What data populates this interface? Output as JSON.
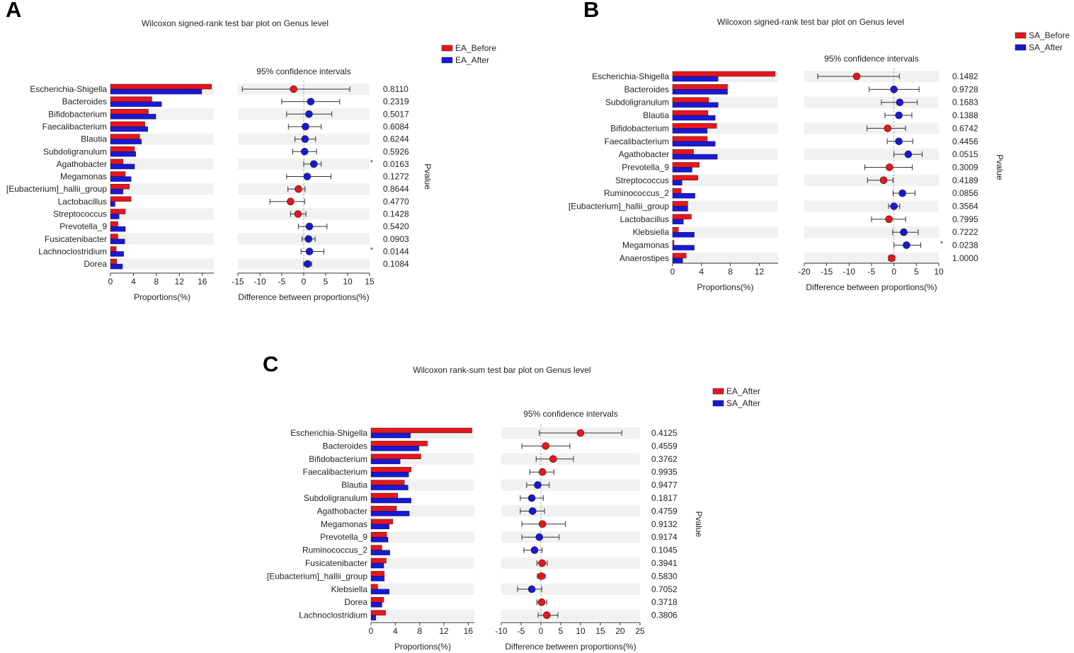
{
  "chart_data": [
    {
      "type": "bar",
      "panel": "A",
      "title": "Wilcoxon signed-rank test bar plot on Genus level",
      "legend": [
        "EA_Before",
        "EA_After"
      ],
      "colors": [
        "#e8151b",
        "#1818d6"
      ],
      "categories": [
        "Escherichia-Shigella",
        "Bacteroides",
        "Bifidobacterium",
        "Faecalibacterium",
        "Blautia",
        "Subdoligranulum",
        "Agathobacter",
        "Megamonas",
        "[Eubacterium]_hallii_group",
        "Lactobacillus",
        "Streptococcus",
        "Prevotella_9",
        "Fusicatenibacter",
        "Lachnoclostridium",
        "Dorea"
      ],
      "series": [
        {
          "name": "EA_Before",
          "values": [
            17.6,
            7.2,
            6.6,
            6.0,
            5.1,
            4.2,
            2.2,
            2.6,
            3.3,
            3.6,
            2.6,
            1.3,
            1.3,
            1.0,
            1.1
          ]
        },
        {
          "name": "EA_After",
          "values": [
            15.9,
            8.9,
            7.9,
            6.5,
            5.4,
            4.4,
            4.2,
            3.6,
            2.2,
            0.8,
            1.5,
            2.6,
            2.5,
            2.3,
            2.1
          ]
        }
      ],
      "bar_ticks": [
        0,
        4,
        8,
        12,
        16
      ],
      "bar_xlim": [
        0,
        18
      ],
      "bar_xlabel": "Proportions(%)",
      "ci_title": "95% confidence intervals",
      "ci_xlabel": "Difference between proportions(%)",
      "ci_ticks": [
        -15,
        -10,
        -5,
        0,
        5,
        10,
        15
      ],
      "ci_xlim": [
        -15,
        15
      ],
      "diff": [
        -2.3,
        1.6,
        1.2,
        0.4,
        0.3,
        0.2,
        2.3,
        0.8,
        -1.2,
        -3.0,
        -1.3,
        1.3,
        1.1,
        1.3,
        0.9
      ],
      "ci_low": [
        -14.0,
        -5.0,
        -3.9,
        -3.5,
        -2.0,
        -2.5,
        0.0,
        -3.9,
        -3.6,
        -7.7,
        -3.0,
        -1.2,
        -0.4,
        -0.6,
        0.0
      ],
      "ci_high": [
        10.5,
        8.2,
        6.4,
        4.0,
        2.7,
        2.9,
        4.0,
        6.2,
        0.3,
        0.2,
        0.5,
        5.3,
        2.6,
        4.6,
        1.8
      ],
      "pvalues": [
        "0.8110",
        "0.2319",
        "0.5017",
        "0.6084",
        "0.6244",
        "0.5926",
        "0.0163",
        "0.1272",
        "0.8644",
        "0.4770",
        "0.1428",
        "0.5420",
        "0.0903",
        "0.0144",
        "0.1084"
      ],
      "significant": [
        false,
        false,
        false,
        false,
        false,
        false,
        true,
        false,
        false,
        false,
        false,
        false,
        false,
        true,
        false
      ],
      "pvalue_label": "Pvalue"
    },
    {
      "type": "bar",
      "panel": "B",
      "title": "Wilcoxon signed-rank test bar plot on Genus level",
      "legend": [
        "SA_Before",
        "SA_After"
      ],
      "colors": [
        "#e8151b",
        "#1818d6"
      ],
      "categories": [
        "Escherichia-Shigella",
        "Bacteroides",
        "Subdoligranulum",
        "Blautia",
        "Bifidobacterium",
        "Faecalibacterium",
        "Agathobacter",
        "Prevotella_9",
        "Streptococcus",
        "Ruminococcus_2",
        "[Eubacterium]_hallii_group",
        "Lactobacillus",
        "Klebsiella",
        "Megamonas",
        "Anaerostipes"
      ],
      "series": [
        {
          "name": "SA_Before",
          "values": [
            14.2,
            7.6,
            5.0,
            4.9,
            6.1,
            4.8,
            2.9,
            3.7,
            3.5,
            1.2,
            2.1,
            2.6,
            0.8,
            0.2,
            1.9
          ]
        },
        {
          "name": "SA_After",
          "values": [
            6.3,
            7.6,
            6.3,
            5.9,
            4.8,
            5.9,
            6.2,
            2.7,
            1.3,
            3.1,
            2.1,
            1.5,
            3.0,
            3.0,
            1.4
          ]
        }
      ],
      "bar_ticks": [
        0,
        4,
        8,
        12
      ],
      "bar_xlim": [
        0,
        14.6
      ],
      "bar_xlabel": "Proportions(%)",
      "ci_title": "95% confidence intervals",
      "ci_xlabel": "Difference between proportions(%)",
      "ci_ticks": [
        -20,
        -15,
        -10,
        -5,
        0,
        5,
        10
      ],
      "ci_xlim": [
        -20,
        10
      ],
      "diff": [
        -8.3,
        0.0,
        1.3,
        1.1,
        -1.4,
        1.1,
        3.2,
        -1.0,
        -2.3,
        1.9,
        0.0,
        -1.1,
        2.2,
        2.8,
        -0.5
      ],
      "ci_low": [
        -17.0,
        -5.5,
        -2.8,
        -2.0,
        -6.0,
        -1.5,
        0.0,
        -6.5,
        -5.9,
        -0.2,
        -1.2,
        -5.0,
        -0.3,
        0.0,
        -1.2
      ],
      "ci_high": [
        1.2,
        5.6,
        5.2,
        4.0,
        2.6,
        4.2,
        6.3,
        4.1,
        -0.2,
        4.7,
        1.3,
        2.6,
        5.4,
        6.0,
        0.2
      ],
      "pvalues": [
        "0.1482",
        "0.9728",
        "0.1683",
        "0.1388",
        "0.6742",
        "0.4456",
        "0.0515",
        "0.3009",
        "0.4189",
        "0.0856",
        "0.3564",
        "0.7995",
        "0.7222",
        "0.0238",
        "1.0000"
      ],
      "significant": [
        false,
        false,
        false,
        false,
        false,
        false,
        false,
        false,
        false,
        false,
        false,
        false,
        false,
        true,
        false
      ],
      "pvalue_label": "Pvalue"
    },
    {
      "type": "bar",
      "panel": "C",
      "title": "Wilcoxon rank-sum test bar plot on Genus level",
      "legend": [
        "EA_After",
        "SA_After"
      ],
      "colors": [
        "#e8151b",
        "#1818d6"
      ],
      "categories": [
        "Escherichia-Shigella",
        "Bacteroides",
        "Bifidobacterium",
        "Faecalibacterium",
        "Blautia",
        "Subdoligranulum",
        "Agathobacter",
        "Megamonas",
        "Prevotella_9",
        "Ruminococcus_2",
        "Fusicatenibacter",
        "[Eubacterium]_hallii_group",
        "Klebsiella",
        "Dorea",
        "Lachnoclostridium"
      ],
      "series": [
        {
          "name": "EA_After",
          "values": [
            16.6,
            9.3,
            8.2,
            6.6,
            5.5,
            4.4,
            4.2,
            3.6,
            2.6,
            1.8,
            2.5,
            2.2,
            1.1,
            2.1,
            2.4
          ]
        },
        {
          "name": "SA_After",
          "values": [
            6.5,
            7.9,
            4.8,
            6.2,
            6.1,
            6.6,
            6.3,
            3.0,
            2.8,
            3.1,
            2.1,
            2.2,
            3.0,
            1.8,
            0.8
          ]
        }
      ],
      "bar_ticks": [
        0,
        4,
        8,
        12,
        16
      ],
      "bar_xlim": [
        0,
        17
      ],
      "bar_xlabel": "Proportions(%)",
      "ci_title": "95% confidence intervals",
      "ci_xlabel": "Difference between proportions(%)",
      "ci_ticks": [
        -10,
        -5,
        0,
        5,
        10,
        15,
        20,
        25
      ],
      "ci_xlim": [
        -10,
        25
      ],
      "diff": [
        10.0,
        1.2,
        3.1,
        0.4,
        -0.8,
        -2.3,
        -2.1,
        0.4,
        -0.4,
        -1.6,
        0.3,
        0.1,
        -2.3,
        0.2,
        1.5
      ],
      "ci_low": [
        -0.4,
        -4.8,
        -1.2,
        -2.8,
        -3.6,
        -5.2,
        -5.2,
        -4.8,
        -4.8,
        -4.3,
        -1.0,
        -0.9,
        -5.9,
        -1.0,
        -0.7
      ],
      "ci_high": [
        20.4,
        7.3,
        8.2,
        3.3,
        2.1,
        0.6,
        0.9,
        6.2,
        4.6,
        0.3,
        1.6,
        1.1,
        0.2,
        1.5,
        4.3
      ],
      "pvalues": [
        "0.4125",
        "0.4559",
        "0.3762",
        "0.9935",
        "0.9477",
        "0.1817",
        "0.4759",
        "0.9132",
        "0.9174",
        "0.1045",
        "0.3941",
        "0.5830",
        "0.7052",
        "0.3718",
        "0.3806"
      ],
      "significant": [
        false,
        false,
        false,
        false,
        false,
        false,
        false,
        false,
        false,
        false,
        false,
        false,
        false,
        false,
        false
      ],
      "pvalue_label": "Pvalue"
    }
  ]
}
